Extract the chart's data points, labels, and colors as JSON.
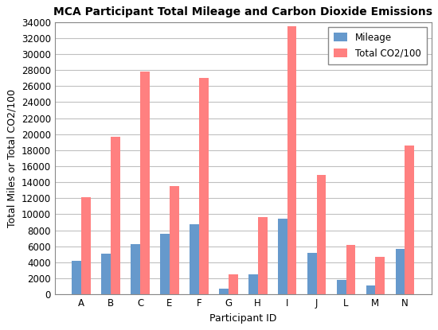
{
  "title": "MCA Participant Total Mileage and Carbon Dioxide Emissions",
  "xlabel": "Participant ID",
  "ylabel": "Total Miles or Total CO2/100",
  "categories": [
    "A",
    "B",
    "C",
    "E",
    "F",
    "G",
    "H",
    "I",
    "J",
    "L",
    "M",
    "N"
  ],
  "mileage": [
    4200,
    5100,
    6300,
    7600,
    8800,
    700,
    2500,
    9500,
    5200,
    1800,
    1100,
    5700
  ],
  "co2": [
    12100,
    19700,
    27800,
    13500,
    27000,
    2500,
    9700,
    33500,
    14900,
    6200,
    4700,
    18600
  ],
  "mileage_color": "#6699CC",
  "co2_color": "#FF8080",
  "legend_labels": [
    "Mileage",
    "Total CO2/100"
  ],
  "ylim": [
    0,
    34000
  ],
  "yticks": [
    0,
    2000,
    4000,
    6000,
    8000,
    10000,
    12000,
    14000,
    16000,
    18000,
    20000,
    22000,
    24000,
    26000,
    28000,
    30000,
    32000,
    34000
  ],
  "plot_bg_color": "#FFFFFF",
  "fig_bg_color": "#FFFFFF",
  "grid_color": "#C0C0C0",
  "title_fontsize": 10,
  "axis_fontsize": 9,
  "tick_fontsize": 8.5,
  "bar_width": 0.32
}
